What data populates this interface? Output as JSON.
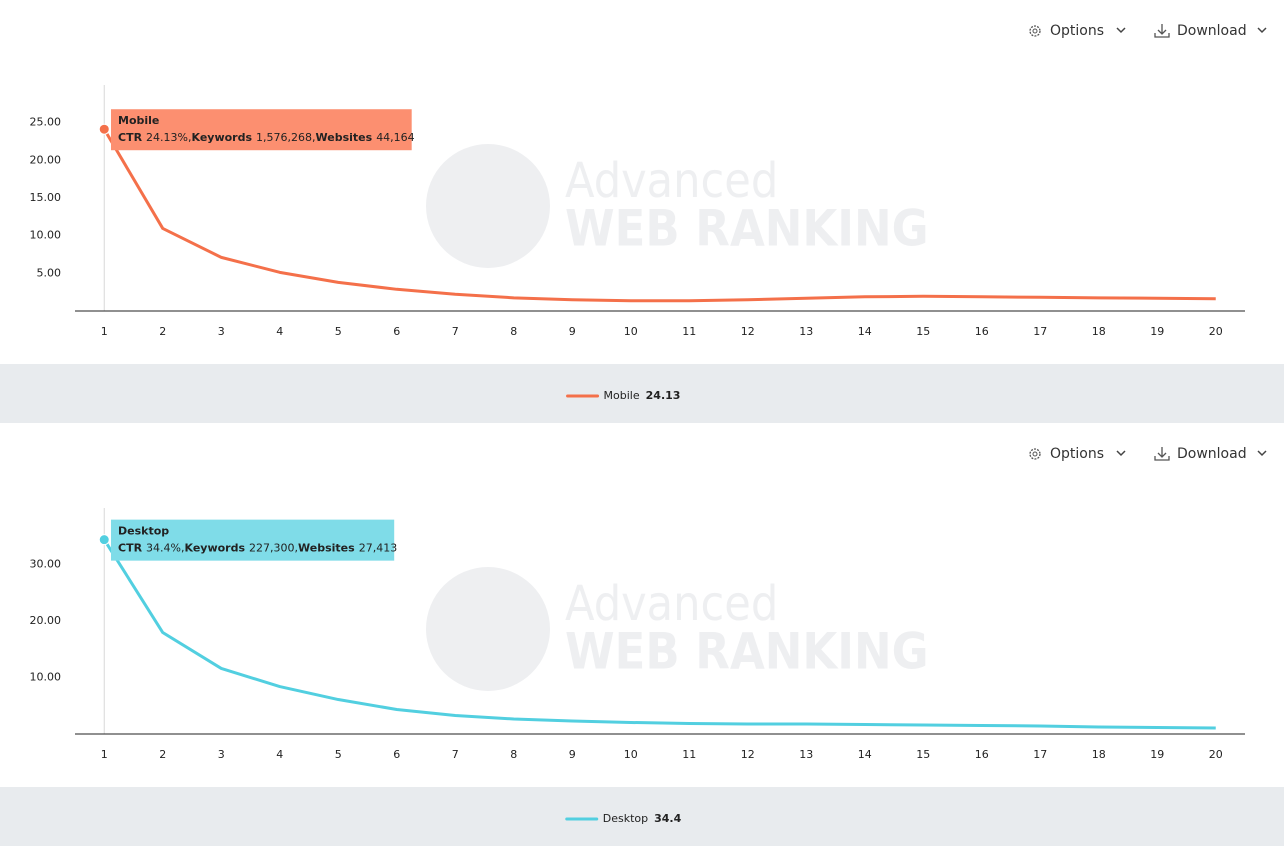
{
  "chart_data": [
    {
      "type": "line",
      "toolbar": [
        "Options",
        "Download"
      ],
      "watermark": [
        "Advanced",
        "WEB RANKING"
      ],
      "x": [
        1,
        2,
        3,
        4,
        5,
        6,
        7,
        8,
        9,
        10,
        11,
        12,
        13,
        14,
        15,
        16,
        17,
        18,
        19,
        20
      ],
      "xlim": [
        0.5,
        20.5
      ],
      "xticks": [
        1,
        2,
        3,
        4,
        5,
        6,
        7,
        8,
        9,
        10,
        11,
        12,
        13,
        14,
        15,
        16,
        17,
        18,
        19,
        20
      ],
      "ylim": [
        0,
        30
      ],
      "yticks": [
        {
          "value": 5,
          "label": "5.00"
        },
        {
          "value": 10,
          "label": "10.00"
        },
        {
          "value": 15,
          "label": "15.00"
        },
        {
          "value": 20,
          "label": "20.00"
        },
        {
          "value": 25,
          "label": "25.00"
        }
      ],
      "series": [
        {
          "name": "Mobile",
          "color": "#f4704a",
          "values": [
            24.13,
            10.96,
            7.12,
            5.13,
            3.8,
            2.88,
            2.22,
            1.75,
            1.49,
            1.36,
            1.36,
            1.49,
            1.69,
            1.89,
            1.95,
            1.89,
            1.82,
            1.75,
            1.69,
            1.62
          ]
        }
      ],
      "tooltip": {
        "color": "#fc8f70",
        "items": [
          {
            "label": "CTR",
            "value": "24.13%"
          },
          {
            "label": "Keywords",
            "value": "1,576,268"
          },
          {
            "label": "Websites",
            "value": "44,164"
          }
        ]
      },
      "legend_value": 24.13
    },
    {
      "type": "line",
      "toolbar": [
        "Options",
        "Download"
      ],
      "watermark": [
        "Advanced",
        "WEB RANKING"
      ],
      "x": [
        1,
        2,
        3,
        4,
        5,
        6,
        7,
        8,
        9,
        10,
        11,
        12,
        13,
        14,
        15,
        16,
        17,
        18,
        19,
        20
      ],
      "xlim": [
        0.5,
        20.5
      ],
      "xticks": [
        1,
        2,
        3,
        4,
        5,
        6,
        7,
        8,
        9,
        10,
        11,
        12,
        13,
        14,
        15,
        16,
        17,
        18,
        19,
        20
      ],
      "ylim": [
        0,
        40
      ],
      "yticks": [
        {
          "value": 10,
          "label": "10.00"
        },
        {
          "value": 20,
          "label": "20.00"
        },
        {
          "value": 30,
          "label": "30.00"
        }
      ],
      "series": [
        {
          "name": "Desktop",
          "color": "#52cfe0",
          "values": [
            34.4,
            17.96,
            11.6,
            8.4,
            6.1,
            4.34,
            3.27,
            2.65,
            2.3,
            2.04,
            1.86,
            1.77,
            1.77,
            1.68,
            1.59,
            1.5,
            1.42,
            1.24,
            1.15,
            1.06
          ]
        }
      ],
      "tooltip": {
        "color": "#7fdce8",
        "items": [
          {
            "label": "CTR",
            "value": "34.4%"
          },
          {
            "label": "Keywords",
            "value": "227,300"
          },
          {
            "label": "Websites",
            "value": "27,413"
          }
        ]
      },
      "legend_value": 34.4
    }
  ]
}
